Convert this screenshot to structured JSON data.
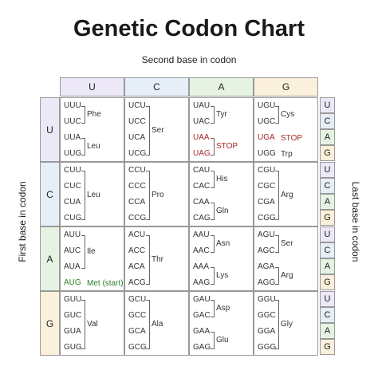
{
  "title": "Genetic Codon Chart",
  "second_base_label": "Second base in codon",
  "first_base_label": "First base in codon",
  "last_base_label": "Last base in codon",
  "second_bases": [
    "U",
    "C",
    "A",
    "G"
  ],
  "first_bases": [
    "U",
    "C",
    "A",
    "G"
  ],
  "third_bases": [
    "U",
    "C",
    "A",
    "G"
  ],
  "header_colors": [
    "#ece8f8",
    "#e6eef8",
    "#e6f3e3",
    "#faf0dc"
  ],
  "first_colors": [
    "#ece8f8",
    "#e6eef8",
    "#e6f3e3",
    "#faf0dc"
  ],
  "cells": [
    [
      {
        "codons": [
          "UUU",
          "UUC",
          "UUA",
          "UUG"
        ],
        "groups": [
          {
            "rows": [
              0,
              1
            ],
            "label": "Phe"
          },
          {
            "rows": [
              2,
              3
            ],
            "label": "Leu"
          }
        ]
      },
      {
        "codons": [
          "UCU",
          "UCC",
          "UCA",
          "UCG"
        ],
        "groups": [
          {
            "rows": [
              0,
              3
            ],
            "label": "Ser"
          }
        ]
      },
      {
        "codons": [
          "UAU",
          "UAC",
          "UAA",
          "UAG"
        ],
        "groups": [
          {
            "rows": [
              0,
              1
            ],
            "label": "Tyr"
          },
          {
            "rows": [
              2,
              3
            ],
            "label": "STOP",
            "style": "stop"
          }
        ],
        "styles": [
          "",
          "",
          "stop",
          "stop"
        ]
      },
      {
        "codons": [
          "UGU",
          "UGC",
          "UGA",
          "UGG"
        ],
        "groups": [
          {
            "rows": [
              0,
              1
            ],
            "label": "Cys"
          },
          {
            "rows": [
              2,
              2
            ],
            "label": "STOP",
            "style": "stop"
          },
          {
            "rows": [
              3,
              3
            ],
            "label": "Trp"
          }
        ],
        "styles": [
          "",
          "",
          "stop",
          ""
        ]
      }
    ],
    [
      {
        "codons": [
          "CUU",
          "CUC",
          "CUA",
          "CUG"
        ],
        "groups": [
          {
            "rows": [
              0,
              3
            ],
            "label": "Leu"
          }
        ]
      },
      {
        "codons": [
          "CCU",
          "CCC",
          "CCA",
          "CCG"
        ],
        "groups": [
          {
            "rows": [
              0,
              3
            ],
            "label": "Pro"
          }
        ]
      },
      {
        "codons": [
          "CAU",
          "CAC",
          "CAA",
          "CAG"
        ],
        "groups": [
          {
            "rows": [
              0,
              1
            ],
            "label": "His"
          },
          {
            "rows": [
              2,
              3
            ],
            "label": "Gln"
          }
        ]
      },
      {
        "codons": [
          "CGU",
          "CGC",
          "CGA",
          "CGG"
        ],
        "groups": [
          {
            "rows": [
              0,
              3
            ],
            "label": "Arg"
          }
        ]
      }
    ],
    [
      {
        "codons": [
          "AUU",
          "AUC",
          "AUA",
          "AUG"
        ],
        "groups": [
          {
            "rows": [
              0,
              2
            ],
            "label": "Ile"
          },
          {
            "rows": [
              3,
              3
            ],
            "label": "Met (start)",
            "style": "start"
          }
        ],
        "styles": [
          "",
          "",
          "",
          "start"
        ]
      },
      {
        "codons": [
          "ACU",
          "ACC",
          "ACA",
          "ACG"
        ],
        "groups": [
          {
            "rows": [
              0,
              3
            ],
            "label": "Thr"
          }
        ]
      },
      {
        "codons": [
          "AAU",
          "AAC",
          "AAA",
          "AAG"
        ],
        "groups": [
          {
            "rows": [
              0,
              1
            ],
            "label": "Asn"
          },
          {
            "rows": [
              2,
              3
            ],
            "label": "Lys"
          }
        ]
      },
      {
        "codons": [
          "AGU",
          "AGC",
          "AGA",
          "AGG"
        ],
        "groups": [
          {
            "rows": [
              0,
              1
            ],
            "label": "Ser"
          },
          {
            "rows": [
              2,
              3
            ],
            "label": "Arg"
          }
        ]
      }
    ],
    [
      {
        "codons": [
          "GUU",
          "GUC",
          "GUA",
          "GUG"
        ],
        "groups": [
          {
            "rows": [
              0,
              3
            ],
            "label": "Val"
          }
        ]
      },
      {
        "codons": [
          "GCU",
          "GCC",
          "GCA",
          "GCG"
        ],
        "groups": [
          {
            "rows": [
              0,
              3
            ],
            "label": "Ala"
          }
        ]
      },
      {
        "codons": [
          "GAU",
          "GAC",
          "GAA",
          "GAG"
        ],
        "groups": [
          {
            "rows": [
              0,
              1
            ],
            "label": "Asp"
          },
          {
            "rows": [
              2,
              3
            ],
            "label": "Glu"
          }
        ]
      },
      {
        "codons": [
          "GGU",
          "GGC",
          "GGA",
          "GGG"
        ],
        "groups": [
          {
            "rows": [
              0,
              3
            ],
            "label": "Gly"
          }
        ]
      }
    ]
  ]
}
